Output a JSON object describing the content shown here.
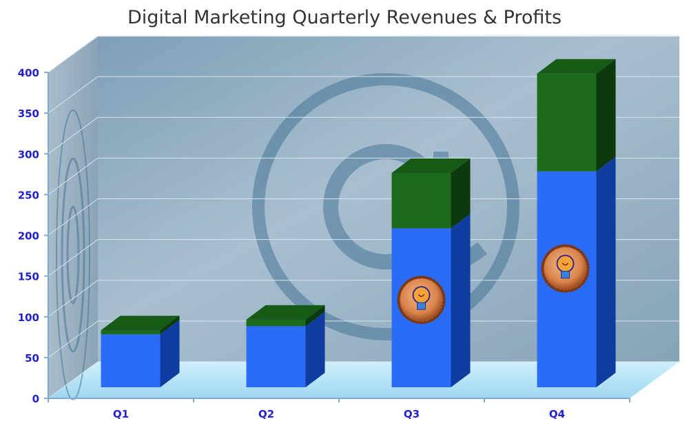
{
  "chart_data": {
    "type": "bar",
    "title": "Digital Marketing Quarterly Revenues & Profits",
    "xlabel": "",
    "ylabel": "",
    "categories": [
      "Q1",
      "Q2",
      "Q3",
      "Q4"
    ],
    "series": [
      {
        "values": [
          65,
          75,
          195,
          265
        ]
      },
      {
        "values": [
          5,
          8,
          68,
          120
        ]
      }
    ],
    "ylim": [
      0,
      400
    ],
    "yticks": [
      0,
      50,
      100,
      150,
      200,
      250,
      300,
      350,
      400
    ],
    "stacked": true,
    "grid": true,
    "legend": "none",
    "colors": {
      "series1": "#2a6cf5",
      "series1_side": "#0f3c9e",
      "series1_top": "#3e80ff",
      "series2": "#1d6a1d",
      "series2_side": "#0d3a0d",
      "series2_top": "#155a15",
      "axis_text": "#2020cc",
      "title": "#333333"
    },
    "icons": {
      "bar_marker": "lightbulb-icon",
      "background": "at-sign-icon"
    }
  }
}
